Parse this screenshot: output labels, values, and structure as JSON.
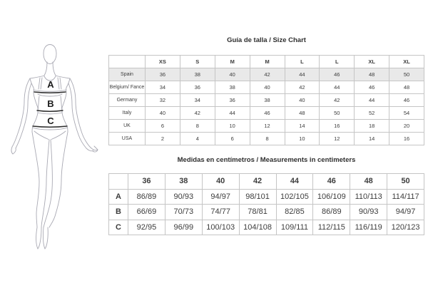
{
  "figure": {
    "labels": {
      "bust": "A",
      "waist": "B",
      "hip": "C"
    }
  },
  "size_chart": {
    "title": "Guía de talla / Size Chart",
    "columns": [
      "",
      "XS",
      "S",
      "M",
      "M",
      "L",
      "L",
      "XL",
      "XL"
    ],
    "rows": [
      {
        "label": "Spain",
        "highlight": true,
        "values": [
          "36",
          "38",
          "40",
          "42",
          "44",
          "46",
          "48",
          "50"
        ]
      },
      {
        "label": "Belgium/ Fance",
        "values": [
          "34",
          "36",
          "38",
          "40",
          "42",
          "44",
          "46",
          "48"
        ]
      },
      {
        "label": "Germany",
        "values": [
          "32",
          "34",
          "36",
          "38",
          "40",
          "42",
          "44",
          "46"
        ]
      },
      {
        "label": "Italy",
        "values": [
          "40",
          "42",
          "44",
          "46",
          "48",
          "50",
          "52",
          "54"
        ]
      },
      {
        "label": "UK",
        "values": [
          "6",
          "8",
          "10",
          "12",
          "14",
          "16",
          "18",
          "20"
        ]
      },
      {
        "label": "USA",
        "values": [
          "2",
          "4",
          "6",
          "8",
          "10",
          "12",
          "14",
          "16"
        ]
      }
    ]
  },
  "measurements_chart": {
    "title": "Medidas en centímetros / Measurements in centimeters",
    "columns": [
      "",
      "36",
      "38",
      "40",
      "42",
      "44",
      "46",
      "48",
      "50"
    ],
    "rows": [
      {
        "label": "A",
        "values": [
          "86/89",
          "90/93",
          "94/97",
          "98/101",
          "102/105",
          "106/109",
          "110/113",
          "114/117"
        ]
      },
      {
        "label": "B",
        "values": [
          "66/69",
          "70/73",
          "74/77",
          "78/81",
          "82/85",
          "86/89",
          "90/93",
          "94/97"
        ]
      },
      {
        "label": "C",
        "values": [
          "92/95",
          "96/99",
          "100/103",
          "104/108",
          "109/111",
          "112/115",
          "116/119",
          "120/123"
        ]
      }
    ]
  },
  "colors": {
    "highlight_row_bg": "#e9e9e9",
    "table_border": "#c5c5c5",
    "text": "#3d3d3d",
    "title_text": "#2e2e2e",
    "sketch_stroke": "#a9a9b3",
    "measure_line": "#2e2e2e"
  }
}
